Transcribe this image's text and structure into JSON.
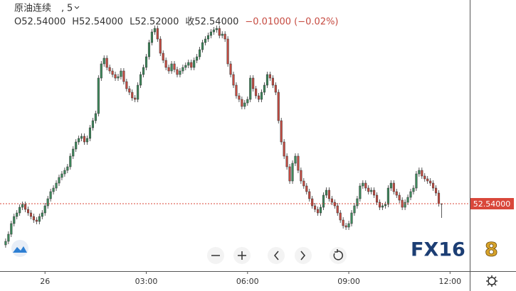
{
  "chart_data": {
    "type": "candlestick",
    "title": "原油连续",
    "interval": "5",
    "ohlc_labels": [
      "O52.54000",
      "H52.54000",
      "L52.52000",
      "收52.54000",
      "−0.01000 (−0.02%)"
    ],
    "up_color": "#3d8a5c",
    "down_color": "#c64b41",
    "last_price": {
      "value": 52.54,
      "label": "52.54000"
    },
    "last_price_color": "#d9473a",
    "logo": [
      "FX16",
      "8"
    ],
    "xlim": [
      -2,
      165
    ],
    "xticks": [
      {
        "value": 14,
        "label": "26"
      },
      {
        "value": 50,
        "label": "03:00"
      },
      {
        "value": 86,
        "label": "06:00"
      },
      {
        "value": 122,
        "label": "09:00"
      },
      {
        "value": 158,
        "label": "12:00"
      }
    ],
    "ylim": [
      52.447,
      52.827
    ],
    "open": [
      52.482,
      52.487,
      52.497,
      52.512,
      52.522,
      52.527,
      52.535,
      52.539,
      52.532,
      52.527,
      52.522,
      52.517,
      52.515,
      52.522,
      52.527,
      52.537,
      52.547,
      52.557,
      52.562,
      52.569,
      52.577,
      52.582,
      52.587,
      52.592,
      52.607,
      52.617,
      52.627,
      52.632,
      52.635,
      52.627,
      52.632,
      52.647,
      52.657,
      52.667,
      52.717,
      52.737,
      52.745,
      52.732,
      52.727,
      52.722,
      52.717,
      52.719,
      52.727,
      52.712,
      52.702,
      52.697,
      52.689,
      52.687,
      52.707,
      52.722,
      52.732,
      52.747,
      52.767,
      52.782,
      52.787,
      52.772,
      52.752,
      52.742,
      52.732,
      52.727,
      52.737,
      52.729,
      52.722,
      52.727,
      52.732,
      52.735,
      52.739,
      52.732,
      52.742,
      52.747,
      52.757,
      52.767,
      52.772,
      52.777,
      52.782,
      52.785,
      52.787,
      52.777,
      52.779,
      52.772,
      52.737,
      52.722,
      52.707,
      52.692,
      52.687,
      52.677,
      52.682,
      52.687,
      52.717,
      52.702,
      52.692,
      52.687,
      52.697,
      52.707,
      52.722,
      52.717,
      52.707,
      52.697,
      52.657,
      52.627,
      52.607,
      52.592,
      52.572,
      52.597,
      52.607,
      52.587,
      52.572,
      52.565,
      52.557,
      52.547,
      52.537,
      52.532,
      52.527,
      52.535,
      52.552,
      52.559,
      52.547,
      52.542,
      52.537,
      52.527,
      52.517,
      52.509,
      52.507,
      52.512,
      52.527,
      52.537,
      52.547,
      52.565,
      52.569,
      52.562,
      52.557,
      52.559,
      52.552,
      52.542,
      52.535,
      52.537,
      52.539,
      52.562,
      52.569,
      52.557,
      52.552,
      52.545,
      52.535,
      52.542,
      52.549,
      52.557,
      52.562,
      52.582,
      52.587,
      52.579,
      52.575,
      52.572,
      52.569,
      52.562,
      52.555,
      52.54
    ],
    "high": [
      52.491,
      52.501,
      52.516,
      52.526,
      52.531,
      52.539,
      52.543,
      52.543,
      52.536,
      52.531,
      52.526,
      52.521,
      52.526,
      52.531,
      52.541,
      52.551,
      52.561,
      52.566,
      52.573,
      52.581,
      52.586,
      52.591,
      52.596,
      52.611,
      52.621,
      52.631,
      52.636,
      52.639,
      52.639,
      52.636,
      52.651,
      52.661,
      52.671,
      52.721,
      52.741,
      52.749,
      52.749,
      52.736,
      52.731,
      52.726,
      52.723,
      52.731,
      52.731,
      52.716,
      52.706,
      52.701,
      52.693,
      52.711,
      52.726,
      52.736,
      52.751,
      52.771,
      52.786,
      52.791,
      52.791,
      52.776,
      52.756,
      52.746,
      52.736,
      52.741,
      52.741,
      52.733,
      52.731,
      52.736,
      52.739,
      52.743,
      52.743,
      52.746,
      52.751,
      52.761,
      52.771,
      52.776,
      52.781,
      52.786,
      52.789,
      52.791,
      52.791,
      52.783,
      52.783,
      52.776,
      52.741,
      52.726,
      52.711,
      52.696,
      52.691,
      52.686,
      52.691,
      52.721,
      52.721,
      52.706,
      52.696,
      52.701,
      52.711,
      52.726,
      52.726,
      52.721,
      52.711,
      52.701,
      52.661,
      52.631,
      52.611,
      52.596,
      52.601,
      52.611,
      52.611,
      52.591,
      52.576,
      52.569,
      52.561,
      52.551,
      52.541,
      52.536,
      52.539,
      52.556,
      52.563,
      52.563,
      52.551,
      52.546,
      52.541,
      52.531,
      52.521,
      52.513,
      52.516,
      52.531,
      52.541,
      52.551,
      52.569,
      52.573,
      52.573,
      52.566,
      52.563,
      52.563,
      52.556,
      52.546,
      52.541,
      52.543,
      52.566,
      52.573,
      52.573,
      52.561,
      52.556,
      52.549,
      52.546,
      52.553,
      52.561,
      52.566,
      52.586,
      52.591,
      52.591,
      52.583,
      52.579,
      52.576,
      52.573,
      52.566,
      52.559,
      52.54
    ],
    "low": [
      52.478,
      52.483,
      52.493,
      52.508,
      52.518,
      52.523,
      52.531,
      52.528,
      52.523,
      52.518,
      52.513,
      52.511,
      52.511,
      52.518,
      52.523,
      52.533,
      52.543,
      52.553,
      52.558,
      52.565,
      52.573,
      52.578,
      52.583,
      52.588,
      52.603,
      52.613,
      52.623,
      52.628,
      52.623,
      52.623,
      52.628,
      52.643,
      52.653,
      52.663,
      52.713,
      52.733,
      52.728,
      52.723,
      52.718,
      52.713,
      52.713,
      52.715,
      52.708,
      52.698,
      52.693,
      52.685,
      52.683,
      52.683,
      52.703,
      52.718,
      52.728,
      52.743,
      52.763,
      52.778,
      52.768,
      52.748,
      52.738,
      52.728,
      52.723,
      52.723,
      52.725,
      52.718,
      52.718,
      52.723,
      52.728,
      52.731,
      52.728,
      52.728,
      52.738,
      52.743,
      52.753,
      52.763,
      52.768,
      52.773,
      52.778,
      52.781,
      52.773,
      52.773,
      52.768,
      52.733,
      52.718,
      52.703,
      52.688,
      52.683,
      52.673,
      52.673,
      52.678,
      52.683,
      52.698,
      52.688,
      52.683,
      52.683,
      52.693,
      52.703,
      52.713,
      52.703,
      52.693,
      52.653,
      52.623,
      52.603,
      52.588,
      52.568,
      52.568,
      52.593,
      52.583,
      52.568,
      52.561,
      52.553,
      52.543,
      52.533,
      52.528,
      52.523,
      52.523,
      52.531,
      52.548,
      52.543,
      52.538,
      52.533,
      52.523,
      52.513,
      52.505,
      52.503,
      52.503,
      52.508,
      52.523,
      52.533,
      52.543,
      52.561,
      52.558,
      52.553,
      52.553,
      52.548,
      52.538,
      52.531,
      52.531,
      52.533,
      52.535,
      52.558,
      52.553,
      52.548,
      52.541,
      52.531,
      52.531,
      52.538,
      52.545,
      52.553,
      52.558,
      52.578,
      52.575,
      52.571,
      52.568,
      52.565,
      52.558,
      52.551,
      52.536,
      52.52
    ],
    "close": [
      52.487,
      52.497,
      52.512,
      52.522,
      52.527,
      52.535,
      52.539,
      52.532,
      52.527,
      52.522,
      52.517,
      52.515,
      52.522,
      52.527,
      52.537,
      52.547,
      52.557,
      52.562,
      52.569,
      52.577,
      52.582,
      52.587,
      52.592,
      52.607,
      52.617,
      52.627,
      52.632,
      52.635,
      52.627,
      52.632,
      52.647,
      52.657,
      52.667,
      52.717,
      52.737,
      52.745,
      52.732,
      52.727,
      52.722,
      52.717,
      52.719,
      52.727,
      52.712,
      52.702,
      52.697,
      52.689,
      52.687,
      52.707,
      52.722,
      52.732,
      52.747,
      52.767,
      52.782,
      52.787,
      52.772,
      52.752,
      52.742,
      52.732,
      52.727,
      52.737,
      52.729,
      52.722,
      52.727,
      52.732,
      52.735,
      52.739,
      52.732,
      52.742,
      52.747,
      52.757,
      52.767,
      52.772,
      52.777,
      52.782,
      52.785,
      52.787,
      52.777,
      52.779,
      52.772,
      52.737,
      52.722,
      52.707,
      52.692,
      52.687,
      52.677,
      52.682,
      52.687,
      52.717,
      52.702,
      52.692,
      52.687,
      52.697,
      52.707,
      52.722,
      52.717,
      52.707,
      52.697,
      52.657,
      52.627,
      52.607,
      52.592,
      52.572,
      52.597,
      52.607,
      52.587,
      52.572,
      52.565,
      52.557,
      52.547,
      52.537,
      52.532,
      52.527,
      52.535,
      52.552,
      52.559,
      52.547,
      52.542,
      52.537,
      52.527,
      52.517,
      52.509,
      52.507,
      52.512,
      52.527,
      52.537,
      52.547,
      52.565,
      52.569,
      52.562,
      52.557,
      52.559,
      52.552,
      52.542,
      52.535,
      52.537,
      52.539,
      52.562,
      52.569,
      52.557,
      52.552,
      52.545,
      52.535,
      52.542,
      52.549,
      52.557,
      52.562,
      52.582,
      52.587,
      52.579,
      52.575,
      52.572,
      52.569,
      52.562,
      52.555,
      52.54,
      52.54
    ]
  }
}
